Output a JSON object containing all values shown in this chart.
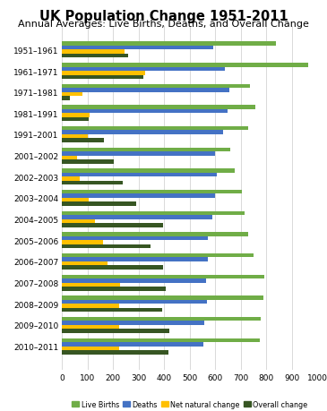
{
  "title": "UK Population Change 1951-2011",
  "subtitle": "Annual Averages: Live Births, Deaths, and Overall Change",
  "categories": [
    "1951–1961",
    "1961–1971",
    "1971–1981",
    "1981–1991",
    "1991–2001",
    "2001–2002",
    "2002–2003",
    "2003–2004",
    "2004–2005",
    "2005–2006",
    "2006–2007",
    "2007–2008",
    "2008–2009",
    "2009–2010",
    "2010–2011"
  ],
  "series": {
    "Live Births": [
      839,
      963,
      736,
      757,
      730,
      659,
      676,
      706,
      716,
      731,
      749,
      792,
      790,
      780,
      776
    ],
    "Deaths": [
      593,
      638,
      657,
      649,
      630,
      601,
      608,
      601,
      589,
      572,
      570,
      566,
      568,
      557,
      552
    ],
    "Net natural change": [
      246,
      325,
      79,
      108,
      100,
      58,
      68,
      105,
      127,
      159,
      179,
      226,
      222,
      223,
      224
    ],
    "Overall change": [
      258,
      317,
      32,
      104,
      163,
      201,
      237,
      292,
      394,
      348,
      397,
      407,
      392,
      419,
      416
    ]
  },
  "colors": {
    "Live Births": "#70AD47",
    "Deaths": "#4472C4",
    "Net natural change": "#FFC000",
    "Overall change": "#375623"
  },
  "legend_order": [
    "Live Births",
    "Deaths",
    "Net natural change",
    "Overall change"
  ],
  "bar_order": [
    "Live Births",
    "Deaths",
    "Net natural change",
    "Overall change"
  ],
  "xlim": [
    0,
    1000
  ],
  "xticks": [
    0,
    100,
    200,
    300,
    400,
    500,
    600,
    700,
    800,
    900,
    1000
  ],
  "background_color": "#FFFFFF",
  "grid_color": "#D9D9D9",
  "title_fontsize": 10.5,
  "subtitle_fontsize": 8,
  "tick_fontsize": 6.5,
  "bar_height": 0.19,
  "group_padding": 0.06
}
